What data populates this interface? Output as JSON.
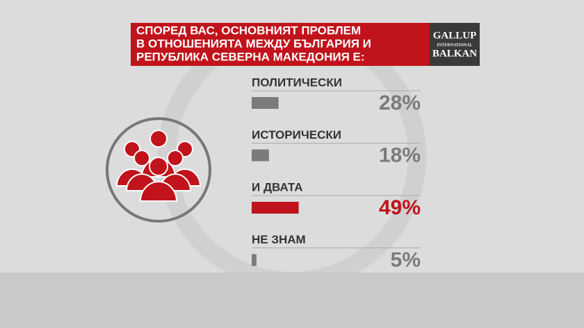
{
  "chart_data": {
    "type": "hbar",
    "title": [
      "СПОРЕД ВАС, ОСНОВНИЯТ ПРОБЛЕМ",
      "В ОТНОШЕНИЯТА МЕЖДУ БЪЛГАРИЯ И",
      "РЕПУБЛИКА СЕВЕРНА МАКЕДОНИЯ Е:"
    ],
    "categories": [
      "ПОЛИТИЧЕСКИ",
      "ИСТОРИЧЕСКИ",
      "И ДВАТА",
      "НЕ ЗНАМ"
    ],
    "values": [
      28,
      18,
      49,
      5
    ],
    "value_labels": [
      "28%",
      "18%",
      "49%",
      "5%"
    ],
    "colors": [
      "#7b7b7b",
      "#7b7b7b",
      "#c0131b",
      "#7b7b7b"
    ]
  },
  "logo": {
    "line1": "GALLUP",
    "line2": "INTERNATIONAL",
    "line3": "BALKAN"
  }
}
